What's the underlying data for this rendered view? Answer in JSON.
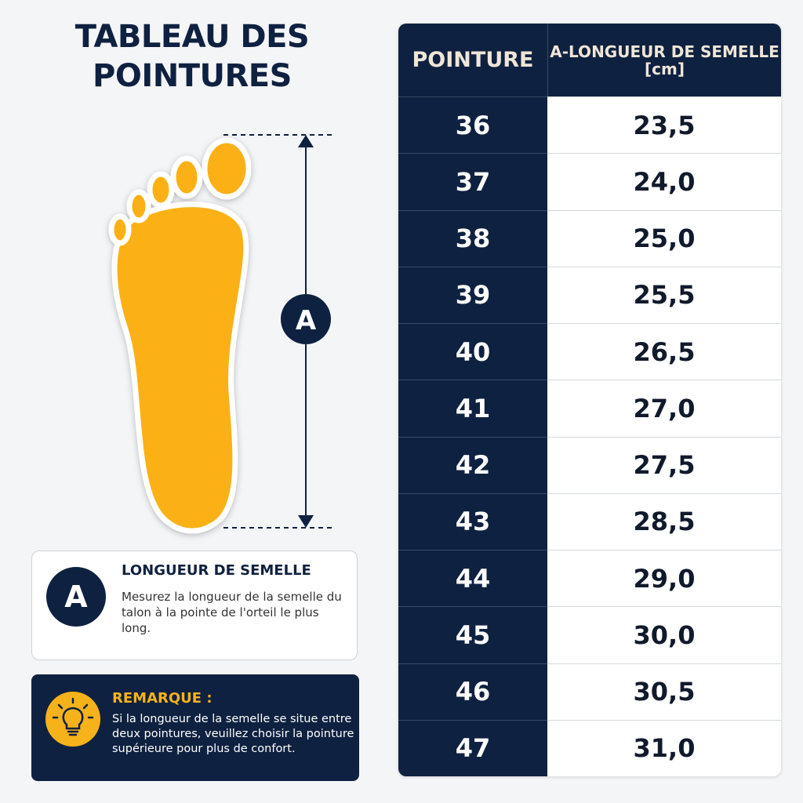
{
  "header": {
    "title": "TABLEAU DES POINTURES"
  },
  "diagram": {
    "marker": "A"
  },
  "legend": {
    "badge": "A",
    "title": "LONGUEUR DE SEMELLE",
    "text": "Mesurez la longueur de la semelle du talon à la pointe de l'orteil le plus long."
  },
  "note": {
    "title": "REMARQUE :",
    "text": "Si la longueur de la semelle se situe entre deux pointures, veuillez choisir la pointure supérieure pour plus de confort."
  },
  "table": {
    "columns": [
      "POINTURE",
      "A-LONGUEUR DE SEMELLE"
    ],
    "unit": "[cm]",
    "rows": [
      [
        "36",
        "23,5"
      ],
      [
        "37",
        "24,0"
      ],
      [
        "38",
        "25,0"
      ],
      [
        "39",
        "25,5"
      ],
      [
        "40",
        "26,5"
      ],
      [
        "41",
        "27,0"
      ],
      [
        "42",
        "27,5"
      ],
      [
        "43",
        "28,5"
      ],
      [
        "44",
        "29,0"
      ],
      [
        "45",
        "30,0"
      ],
      [
        "46",
        "30,5"
      ],
      [
        "47",
        "31,0"
      ]
    ]
  }
}
